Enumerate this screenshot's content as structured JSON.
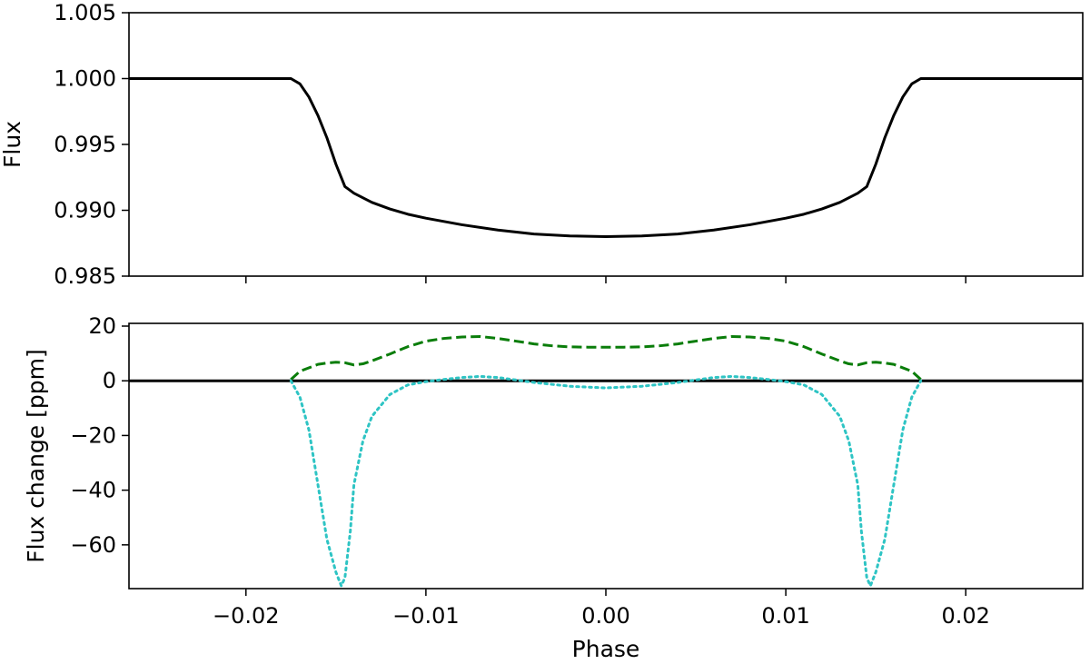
{
  "chart_data": [
    {
      "type": "line",
      "title": "",
      "xlabel": "",
      "ylabel": "Flux",
      "xlim": [
        -0.0265,
        0.0265
      ],
      "ylim": [
        0.985,
        1.005
      ],
      "xticks": [
        -0.02,
        -0.01,
        0.0,
        0.01,
        0.02
      ],
      "xtick_labels": [
        "",
        "",
        "",
        "",
        ""
      ],
      "yticks": [
        0.985,
        0.99,
        0.995,
        1.0,
        1.005
      ],
      "ytick_labels": [
        "0.985",
        "0.990",
        "0.995",
        "1.000",
        "1.005"
      ],
      "grid": false,
      "series": [
        {
          "color": "#000000",
          "style": "solid",
          "x": [
            -0.0265,
            -0.0175,
            -0.017,
            -0.0165,
            -0.016,
            -0.0155,
            -0.015,
            -0.0145,
            -0.014,
            -0.013,
            -0.012,
            -0.011,
            -0.01,
            -0.008,
            -0.006,
            -0.004,
            -0.002,
            0.0,
            0.002,
            0.004,
            0.006,
            0.008,
            0.01,
            0.011,
            0.012,
            0.013,
            0.014,
            0.0145,
            0.015,
            0.0155,
            0.016,
            0.0165,
            0.017,
            0.0175,
            0.0265
          ],
          "y": [
            1.0,
            1.0,
            0.9996,
            0.9986,
            0.9972,
            0.9955,
            0.9935,
            0.9918,
            0.9913,
            0.9906,
            0.9901,
            0.9897,
            0.9894,
            0.9889,
            0.9885,
            0.9882,
            0.98805,
            0.988,
            0.98805,
            0.9882,
            0.9885,
            0.9889,
            0.9894,
            0.9897,
            0.9901,
            0.9906,
            0.9913,
            0.9918,
            0.9935,
            0.9955,
            0.9972,
            0.9986,
            0.9996,
            1.0,
            1.0
          ]
        }
      ]
    },
    {
      "type": "line",
      "title": "",
      "xlabel": "Phase",
      "ylabel": "Flux change [ppm]",
      "xlim": [
        -0.0265,
        0.0265
      ],
      "ylim": [
        -76,
        21
      ],
      "xticks": [
        -0.02,
        -0.01,
        0.0,
        0.01,
        0.02
      ],
      "xtick_labels": [
        "−0.02",
        "−0.01",
        "0.00",
        "0.01",
        "0.02"
      ],
      "yticks": [
        20,
        0,
        -20,
        -40,
        -60
      ],
      "ytick_labels": [
        "20",
        "0",
        "−20",
        "−40",
        "−60"
      ],
      "grid": false,
      "series": [
        {
          "color": "#000000",
          "style": "solid",
          "x": [
            -0.0265,
            0.0265
          ],
          "y": [
            0,
            0
          ]
        },
        {
          "color": "#0a7d0a",
          "style": "dashed",
          "x": [
            -0.0175,
            -0.017,
            -0.016,
            -0.0155,
            -0.015,
            -0.0145,
            -0.014,
            -0.0135,
            -0.013,
            -0.012,
            -0.011,
            -0.01,
            -0.009,
            -0.008,
            -0.007,
            -0.006,
            -0.005,
            -0.004,
            -0.003,
            -0.002,
            -0.001,
            0.0,
            0.001,
            0.002,
            0.003,
            0.004,
            0.005,
            0.006,
            0.007,
            0.008,
            0.009,
            0.01,
            0.011,
            0.012,
            0.013,
            0.0135,
            0.014,
            0.0145,
            0.015,
            0.0155,
            0.016,
            0.017,
            0.0175
          ],
          "y": [
            0.5,
            3.5,
            6.0,
            6.5,
            6.8,
            6.6,
            5.8,
            6.2,
            7.3,
            9.8,
            12.5,
            14.5,
            15.5,
            16.0,
            16.2,
            15.5,
            14.5,
            13.5,
            12.8,
            12.4,
            12.3,
            12.3,
            12.3,
            12.4,
            12.8,
            13.5,
            14.5,
            15.5,
            16.2,
            16.0,
            15.5,
            14.5,
            12.5,
            9.8,
            7.3,
            6.2,
            5.8,
            6.6,
            6.8,
            6.5,
            6.0,
            3.5,
            0.5
          ]
        },
        {
          "color": "#2ec4c4",
          "style": "dotted",
          "x": [
            -0.0175,
            -0.017,
            -0.0165,
            -0.016,
            -0.0155,
            -0.015,
            -0.0147,
            -0.0145,
            -0.0142,
            -0.014,
            -0.0135,
            -0.013,
            -0.012,
            -0.011,
            -0.01,
            -0.009,
            -0.008,
            -0.007,
            -0.006,
            -0.005,
            -0.004,
            -0.002,
            0.0,
            0.002,
            0.004,
            0.005,
            0.006,
            0.007,
            0.008,
            0.009,
            0.01,
            0.011,
            0.012,
            0.013,
            0.0135,
            0.014,
            0.0142,
            0.0145,
            0.0147,
            0.015,
            0.0155,
            0.016,
            0.0165,
            0.017,
            0.0175
          ],
          "y": [
            0,
            -6,
            -18,
            -38,
            -58,
            -70,
            -75,
            -72,
            -55,
            -38,
            -22,
            -13,
            -5,
            -1.5,
            -0.3,
            0.5,
            1.2,
            1.6,
            1.2,
            0.3,
            -0.6,
            -2.0,
            -2.6,
            -2.0,
            -0.6,
            0.3,
            1.2,
            1.6,
            1.2,
            0.5,
            -0.3,
            -1.5,
            -5,
            -13,
            -22,
            -38,
            -55,
            -72,
            -75,
            -70,
            -58,
            -38,
            -18,
            -6,
            0
          ]
        }
      ]
    }
  ]
}
